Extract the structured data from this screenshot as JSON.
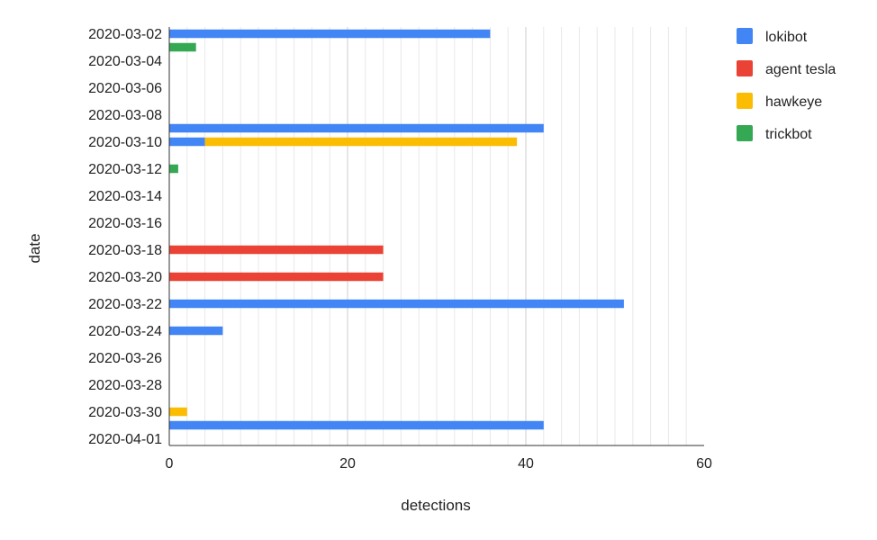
{
  "chart_data": {
    "type": "bar",
    "orientation": "horizontal",
    "stacked": true,
    "xlabel": "detections",
    "ylabel": "date",
    "xlim": [
      0,
      60
    ],
    "x_ticks": [
      0,
      20,
      40,
      60
    ],
    "grid": "vertical",
    "legend_position": "top-right",
    "categories": [
      "2020-03-02",
      "2020-03-03",
      "2020-03-04",
      "2020-03-05",
      "2020-03-06",
      "2020-03-07",
      "2020-03-08",
      "2020-03-09",
      "2020-03-10",
      "2020-03-11",
      "2020-03-12",
      "2020-03-13",
      "2020-03-14",
      "2020-03-15",
      "2020-03-16",
      "2020-03-17",
      "2020-03-18",
      "2020-03-19",
      "2020-03-20",
      "2020-03-21",
      "2020-03-22",
      "2020-03-23",
      "2020-03-24",
      "2020-03-25",
      "2020-03-26",
      "2020-03-27",
      "2020-03-28",
      "2020-03-29",
      "2020-03-30",
      "2020-03-31",
      "2020-04-01"
    ],
    "category_labels": [
      "2020-03-02",
      "2020-03-04",
      "2020-03-06",
      "2020-03-08",
      "2020-03-10",
      "2020-03-12",
      "2020-03-14",
      "2020-03-16",
      "2020-03-18",
      "2020-03-20",
      "2020-03-22",
      "2020-03-24",
      "2020-03-26",
      "2020-03-28",
      "2020-03-30",
      "2020-04-01"
    ],
    "series": [
      {
        "name": "lokibot",
        "color": "#4285F4",
        "values": [
          36,
          0,
          0,
          0,
          0,
          0,
          0,
          42,
          4,
          0,
          0,
          0,
          0,
          0,
          0,
          0,
          0,
          0,
          0,
          0,
          51,
          0,
          6,
          0,
          0,
          0,
          0,
          0,
          0,
          42,
          0
        ]
      },
      {
        "name": "agent tesla",
        "color": "#EA4335",
        "values": [
          0,
          0,
          0,
          0,
          0,
          0,
          0,
          0,
          0,
          0,
          0,
          0,
          0,
          0,
          0,
          0,
          24,
          0,
          24,
          0,
          0,
          0,
          0,
          0,
          0,
          0,
          0,
          0,
          0,
          0,
          0
        ]
      },
      {
        "name": "hawkeye",
        "color": "#FBBC04",
        "values": [
          0,
          0,
          0,
          0,
          0,
          0,
          0,
          0,
          35,
          0,
          0,
          0,
          0,
          0,
          0,
          0,
          0,
          0,
          0,
          0,
          0,
          0,
          0,
          0,
          0,
          0,
          0,
          0,
          2,
          0,
          0
        ]
      },
      {
        "name": "trickbot",
        "color": "#34A853",
        "values": [
          0,
          3,
          0,
          0,
          0,
          0,
          0,
          0,
          0,
          0,
          1,
          0,
          0,
          0,
          0,
          0,
          0,
          0,
          0,
          0,
          0,
          0,
          0,
          0,
          0,
          0,
          0,
          0,
          0,
          0,
          0
        ]
      }
    ]
  }
}
